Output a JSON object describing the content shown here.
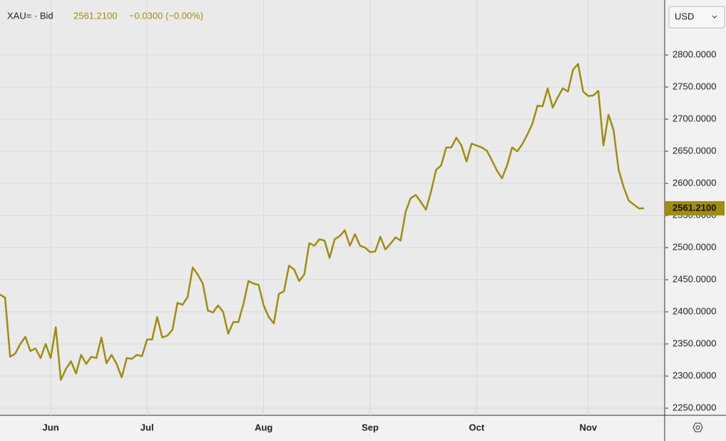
{
  "header": {
    "symbol": "XAU= · Bid",
    "price": "2561.2100",
    "change": "−0.0300 (−0.00%)"
  },
  "currency": "USD",
  "chart_data": {
    "type": "line",
    "color": "#a08c10",
    "grid": true,
    "ylim": [
      2238.9,
      2880
    ],
    "yticks": [
      {
        "value": 2250,
        "label": "2250.0000"
      },
      {
        "value": 2300,
        "label": "2300.0000"
      },
      {
        "value": 2350,
        "label": "2350.0000"
      },
      {
        "value": 2400,
        "label": "2400.0000"
      },
      {
        "value": 2450,
        "label": "2450.0000"
      },
      {
        "value": 2500,
        "label": "2500.0000"
      },
      {
        "value": 2550,
        "label": "2550.0000"
      },
      {
        "value": 2600,
        "label": "2600.0000"
      },
      {
        "value": 2650,
        "label": "2650.0000"
      },
      {
        "value": 2700,
        "label": "2700.0000"
      },
      {
        "value": 2750,
        "label": "2750.0000"
      },
      {
        "value": 2800,
        "label": "2800.0000"
      }
    ],
    "last_price": {
      "value": 2561.21,
      "label": "2561.2100"
    },
    "categories": [
      null,
      null,
      null,
      null,
      null,
      null,
      null,
      null,
      null,
      null,
      "Jun",
      null,
      null,
      null,
      null,
      null,
      null,
      null,
      null,
      null,
      null,
      null,
      null,
      null,
      null,
      null,
      null,
      null,
      null,
      "Jul",
      null,
      null,
      null,
      null,
      null,
      null,
      null,
      null,
      null,
      null,
      null,
      null,
      null,
      null,
      null,
      null,
      null,
      null,
      null,
      null,
      null,
      null,
      "Aug",
      null,
      null,
      null,
      null,
      null,
      null,
      null,
      null,
      null,
      null,
      null,
      null,
      null,
      null,
      null,
      null,
      null,
      null,
      null,
      null,
      "Sep",
      null,
      null,
      null,
      null,
      null,
      null,
      null,
      null,
      null,
      null,
      null,
      null,
      null,
      null,
      null,
      null,
      null,
      null,
      null,
      null,
      "Oct",
      null,
      null,
      null,
      null,
      null,
      null,
      null,
      null,
      null,
      null,
      null,
      null,
      null,
      null,
      null,
      null,
      null,
      null,
      null,
      null,
      null,
      "Nov",
      null,
      null,
      null,
      null,
      null,
      null,
      null,
      null,
      null,
      null,
      null
    ],
    "values": [
      2427,
      2422,
      2330,
      2335,
      2350,
      2361,
      2339,
      2343,
      2328,
      2350,
      2328,
      2376,
      2294,
      2311,
      2323,
      2304,
      2333,
      2319,
      2330,
      2328,
      2360,
      2320,
      2333,
      2319,
      2298,
      2328,
      2327,
      2333,
      2331,
      2357,
      2357,
      2392,
      2360,
      2363,
      2372,
      2414,
      2411,
      2423,
      2469,
      2458,
      2444,
      2402,
      2399,
      2410,
      2400,
      2366,
      2384,
      2384,
      2412,
      2448,
      2444,
      2442,
      2410,
      2392,
      2382,
      2428,
      2432,
      2472,
      2466,
      2448,
      2458,
      2507,
      2503,
      2513,
      2511,
      2484,
      2513,
      2518,
      2527,
      2503,
      2521,
      2503,
      2500,
      2493,
      2494,
      2517,
      2497,
      2506,
      2516,
      2511,
      2556,
      2577,
      2582,
      2571,
      2559,
      2587,
      2621,
      2628,
      2656,
      2656,
      2671,
      2659,
      2634,
      2662,
      2659,
      2656,
      2651,
      2636,
      2620,
      2608,
      2628,
      2656,
      2650,
      2661,
      2676,
      2693,
      2721,
      2720,
      2748,
      2718,
      2734,
      2748,
      2743,
      2777,
      2786,
      2743,
      2736,
      2737,
      2744,
      2659,
      2707,
      2683,
      2621,
      2594,
      2573,
      2567,
      2561,
      2561.21
    ]
  }
}
